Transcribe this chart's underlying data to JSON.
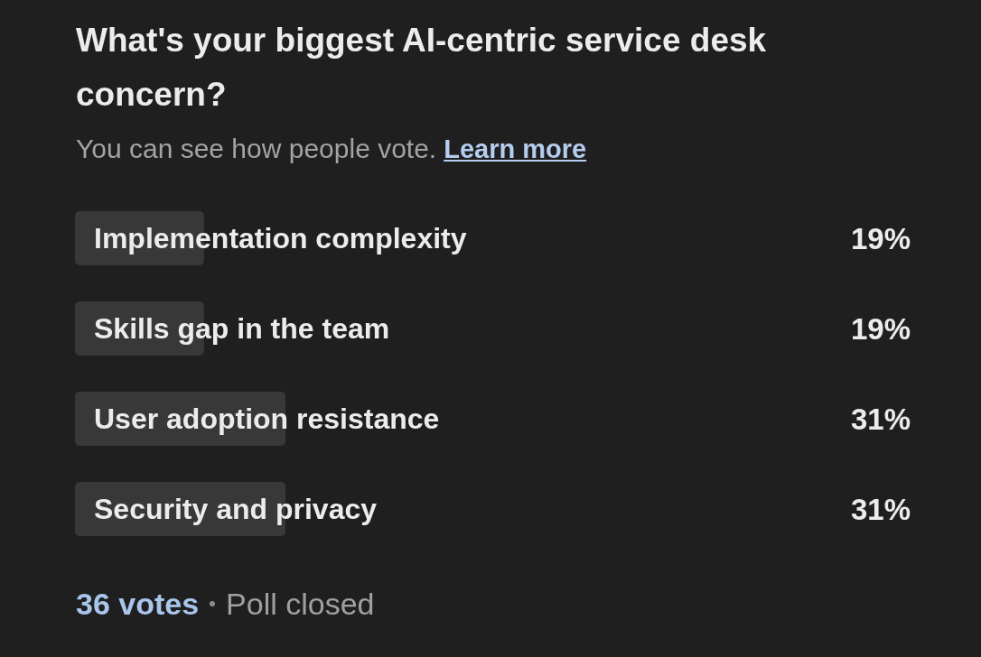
{
  "chart_data": {
    "type": "bar",
    "orientation": "horizontal",
    "title": "What's your biggest AI-centric service desk concern?",
    "subtitle": "You can see how people vote.",
    "categories": [
      "Implementation complexity",
      "Skills gap in the team",
      "User adoption resistance",
      "Security and privacy"
    ],
    "values": [
      19,
      19,
      31,
      31
    ],
    "value_labels": [
      "19%",
      "19%",
      "31%",
      "31%"
    ],
    "color": "#383838",
    "tick_labels": "y",
    "annotations": [
      "Learn more",
      "36 votes",
      "Poll closed"
    ]
  }
}
